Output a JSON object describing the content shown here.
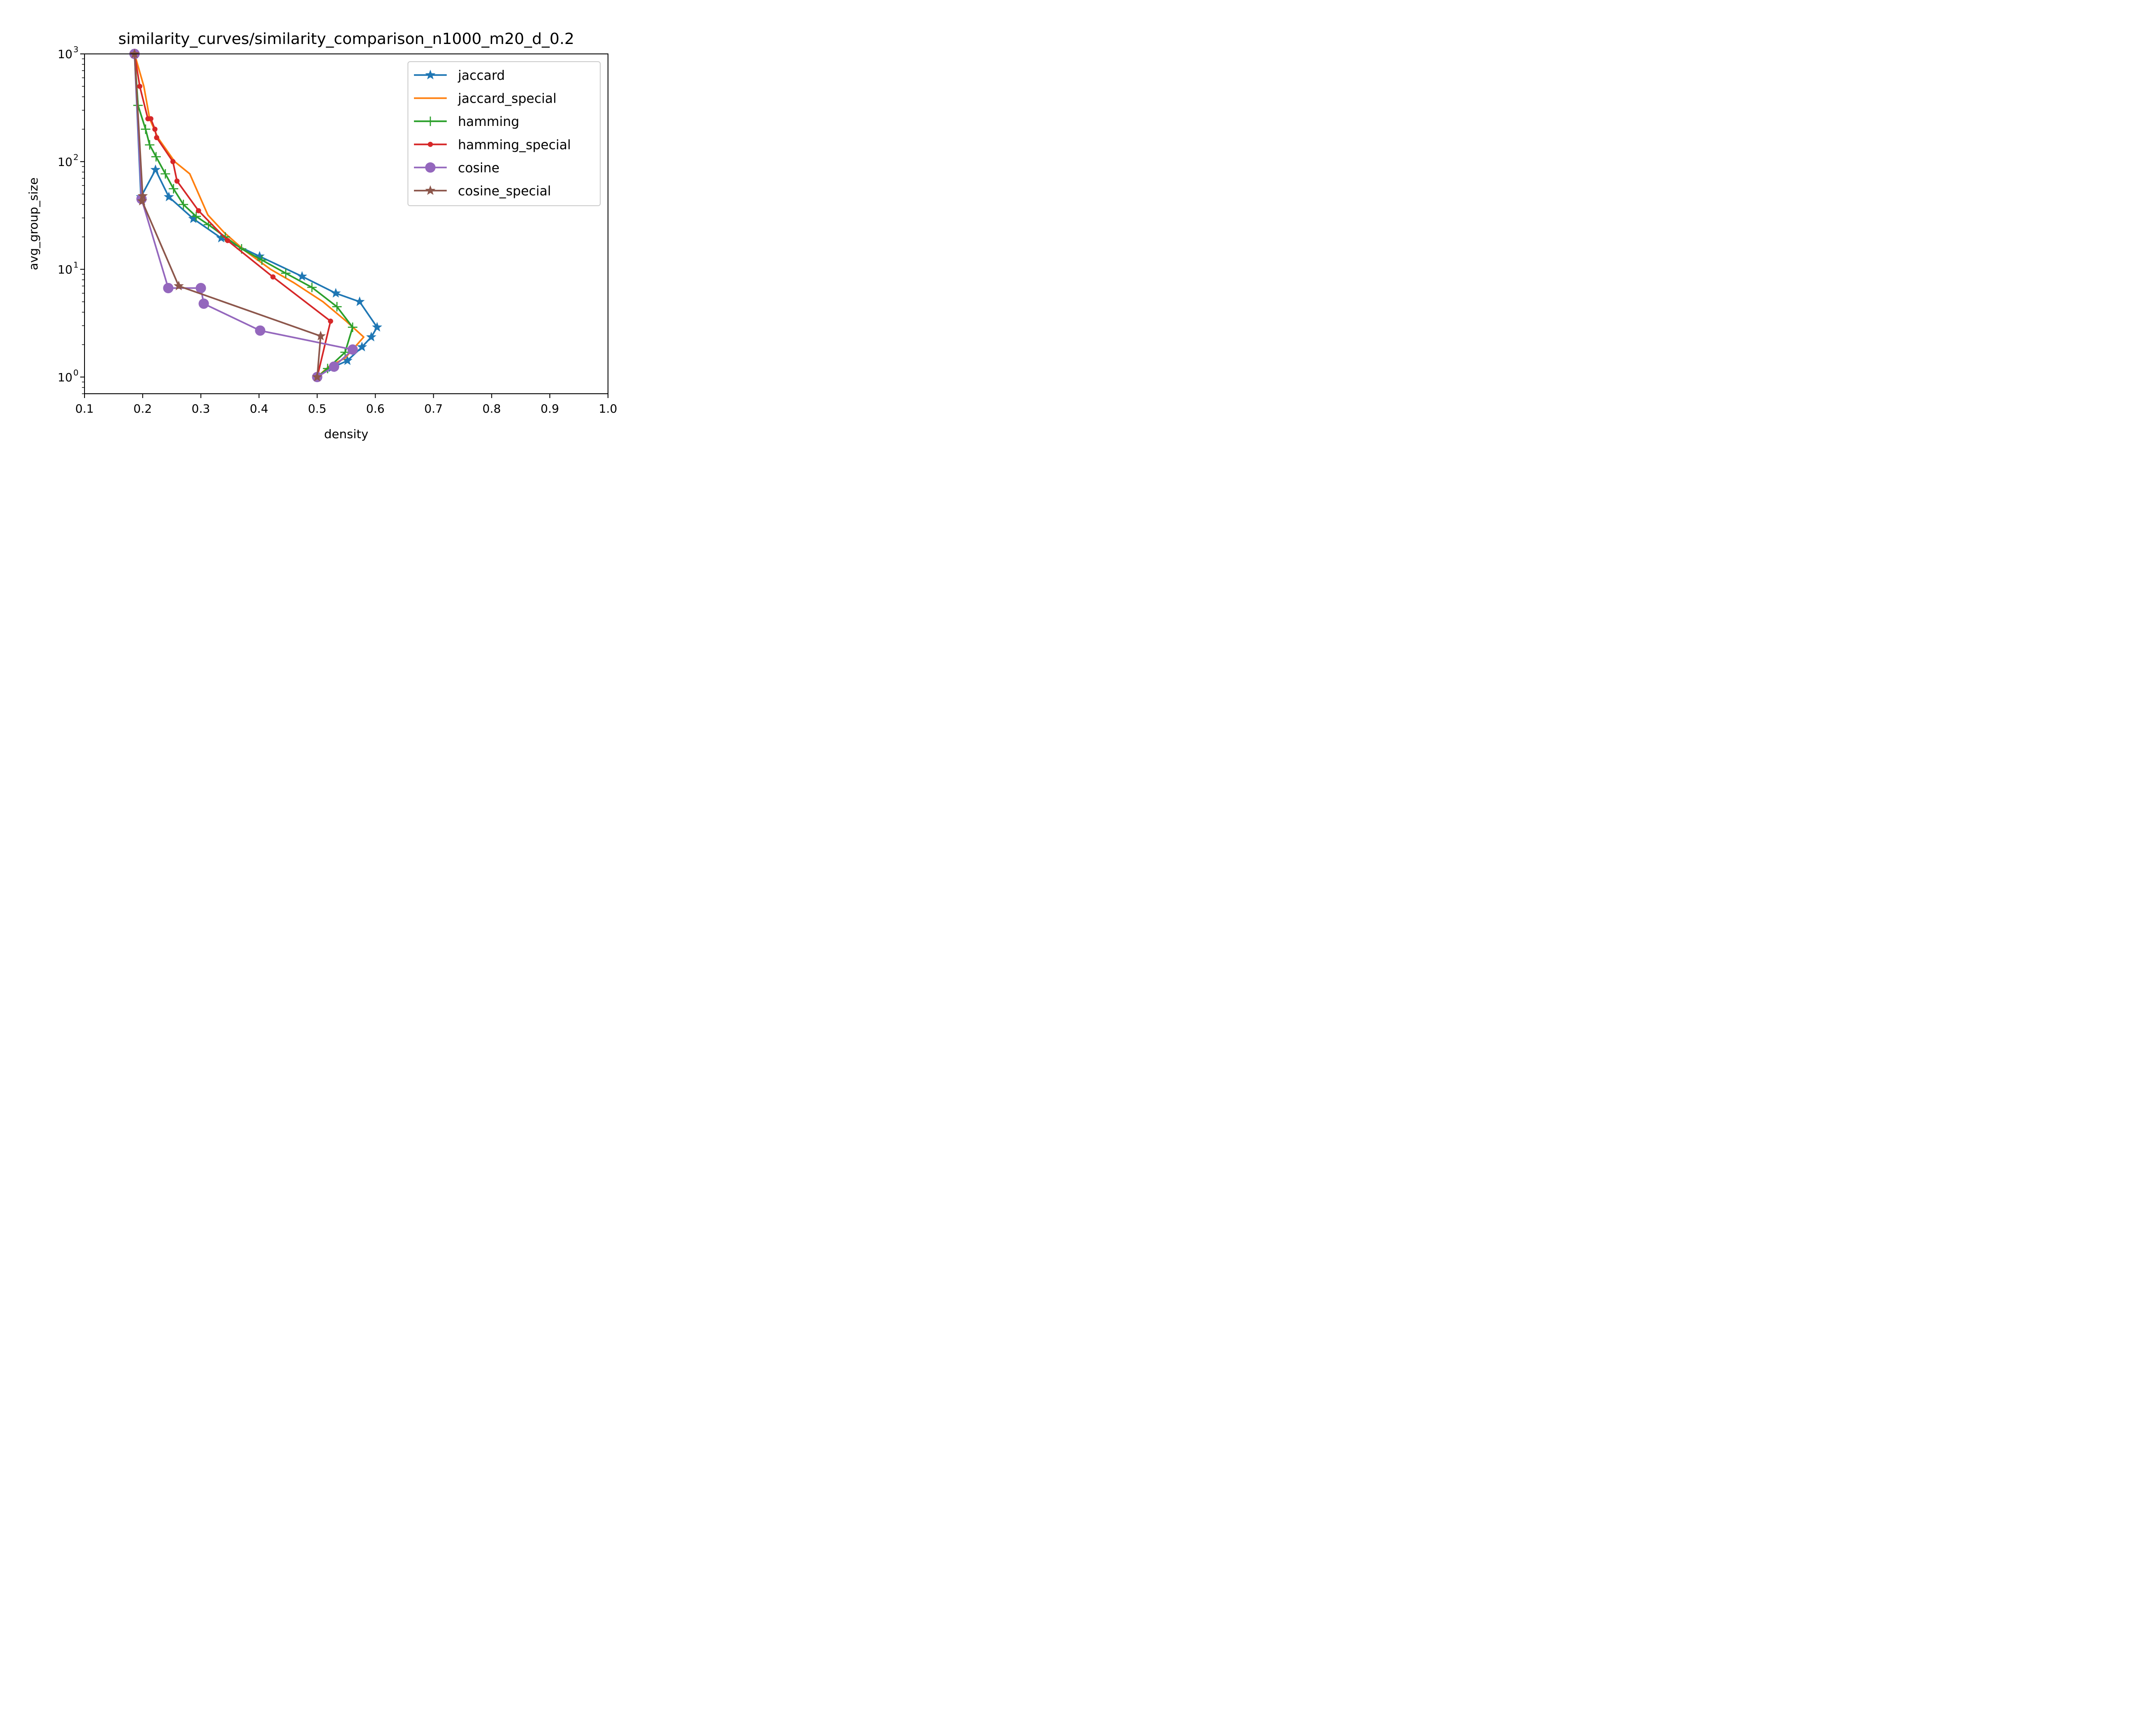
{
  "chart_data": {
    "type": "line",
    "title": "similarity_curves/similarity_comparison_n1000_m20_d_0.2",
    "xlabel": "density",
    "ylabel": "avg_group_size",
    "xlim": [
      0.1,
      1.0
    ],
    "ylim": [
      0.7,
      1000
    ],
    "yscale": "log",
    "grid": false,
    "legend_position": "upper-right",
    "x_ticks": [
      "0.1",
      "0.2",
      "0.3",
      "0.4",
      "0.5",
      "0.6",
      "0.7",
      "0.8",
      "0.9",
      "1.0"
    ],
    "y_ticks": [
      {
        "value": 1,
        "base": "10",
        "exp": "0"
      },
      {
        "value": 10,
        "base": "10",
        "exp": "1"
      },
      {
        "value": 100,
        "base": "10",
        "exp": "2"
      },
      {
        "value": 1000,
        "base": "10",
        "exp": "3"
      }
    ],
    "series": [
      {
        "name": "jaccard",
        "color": "#1f77b4",
        "marker": "star",
        "x": [
          0.186,
          0.197,
          0.222,
          0.245,
          0.287,
          0.335,
          0.401,
          0.474,
          0.532,
          0.573,
          0.603,
          0.593,
          0.577,
          0.552,
          0.525,
          0.5
        ],
        "y": [
          1000,
          47,
          84,
          47,
          29.5,
          19.5,
          13.2,
          8.6,
          6.0,
          5.0,
          2.9,
          2.35,
          1.9,
          1.42,
          1.22,
          1.0
        ]
      },
      {
        "name": "jaccard_special",
        "color": "#ff7f0e",
        "marker": "none",
        "x": [
          0.186,
          0.202,
          0.212,
          0.226,
          0.255,
          0.281,
          0.312,
          0.34,
          0.375,
          0.42,
          0.46,
          0.51,
          0.55,
          0.58,
          0.548,
          0.52,
          0.5
        ],
        "y": [
          1000,
          500,
          250,
          167,
          100,
          77,
          32,
          22,
          15,
          10,
          7.5,
          5.0,
          3.3,
          2.35,
          1.5,
          1.25,
          1.0
        ]
      },
      {
        "name": "hamming",
        "color": "#2ca02c",
        "marker": "plus",
        "x": [
          0.186,
          0.192,
          0.205,
          0.212,
          0.223,
          0.239,
          0.253,
          0.27,
          0.292,
          0.313,
          0.342,
          0.37,
          0.405,
          0.446,
          0.491,
          0.534,
          0.561,
          0.548,
          0.518,
          0.5
        ],
        "y": [
          1000,
          333,
          200,
          143,
          111,
          77,
          56,
          40,
          31,
          26,
          20,
          15.5,
          12.2,
          9.2,
          6.8,
          4.5,
          2.9,
          1.7,
          1.2,
          1.0
        ]
      },
      {
        "name": "hamming_special",
        "color": "#d62728",
        "marker": "point",
        "x": [
          0.186,
          0.195,
          0.209,
          0.214,
          0.221,
          0.224,
          0.252,
          0.259,
          0.296,
          0.346,
          0.424,
          0.523,
          0.5
        ],
        "y": [
          1000,
          500,
          250,
          250,
          200,
          167,
          100,
          66,
          35,
          18.5,
          8.5,
          3.3,
          1.0
        ]
      },
      {
        "name": "cosine",
        "color": "#9467bd",
        "marker": "circle",
        "x": [
          0.186,
          0.198,
          0.244,
          0.3,
          0.305,
          0.402,
          0.561,
          0.529,
          0.5
        ],
        "y": [
          1000,
          45,
          6.7,
          6.7,
          4.8,
          2.7,
          1.8,
          1.25,
          1.0
        ]
      },
      {
        "name": "cosine_special",
        "color": "#8c564b",
        "marker": "star",
        "x": [
          0.186,
          0.2,
          0.199,
          0.262,
          0.506,
          0.5
        ],
        "y": [
          1000,
          48,
          43,
          7.0,
          2.4,
          1.0
        ]
      }
    ]
  }
}
